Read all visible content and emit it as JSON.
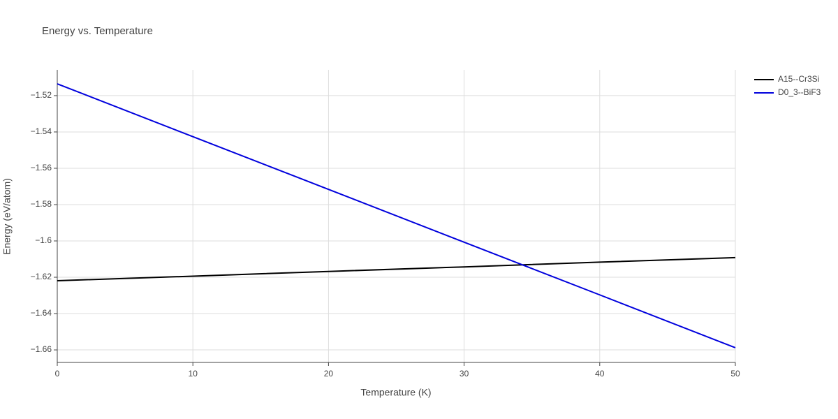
{
  "chart_data": {
    "type": "line",
    "title": "Energy vs. Temperature",
    "x_label": "Temperature (K)",
    "y_label": "Energy (eV/atom)",
    "x": [
      0,
      10,
      20,
      30,
      40,
      50
    ],
    "series": [
      {
        "name": "A15--Cr3Si",
        "color": "#000000",
        "values": [
          -1.6219,
          -1.6194,
          -1.6168,
          -1.6143,
          -1.6117,
          -1.6092
        ]
      },
      {
        "name": "D0_3--BiF3",
        "color": "#0000dd",
        "values": [
          -1.5135,
          -1.5426,
          -1.5716,
          -1.6007,
          -1.6297,
          -1.6588
        ]
      }
    ],
    "xlim": [
      0,
      50
    ],
    "xticks": [
      0,
      10,
      20,
      30,
      40,
      50
    ],
    "ylim": [
      -1.6669,
      -1.5058
    ],
    "yticks": [
      {
        "value": -1.66,
        "label": "−1.66"
      },
      {
        "value": -1.64,
        "label": "−1.64"
      },
      {
        "value": -1.62,
        "label": "−1.62"
      },
      {
        "value": -1.6,
        "label": "−1.6"
      },
      {
        "value": -1.58,
        "label": "−1.58"
      },
      {
        "value": -1.56,
        "label": "−1.56"
      },
      {
        "value": -1.54,
        "label": "−1.54"
      },
      {
        "value": -1.52,
        "label": "−1.52"
      }
    ],
    "grid": true,
    "legend": "right"
  }
}
